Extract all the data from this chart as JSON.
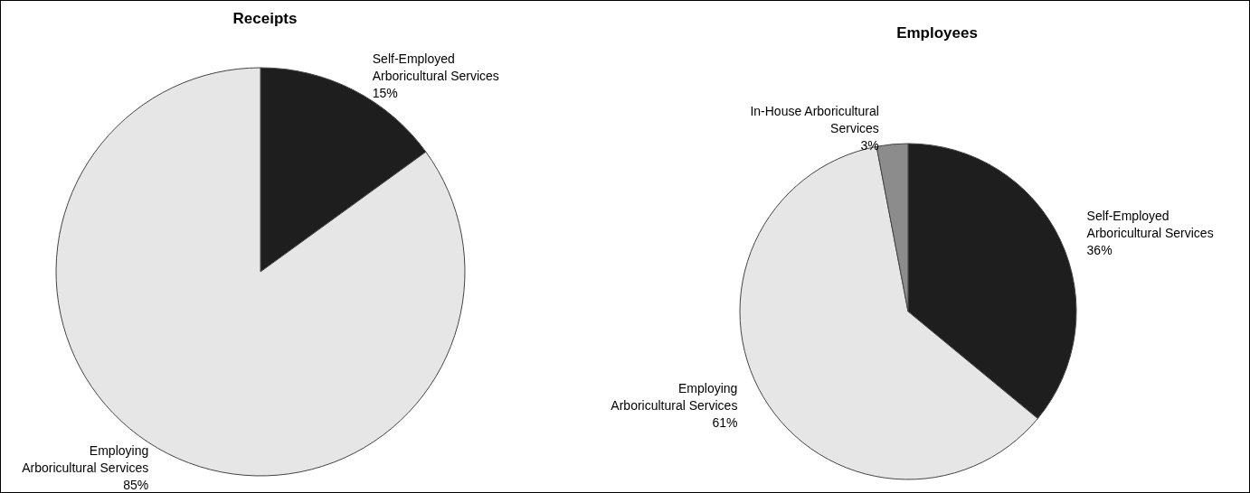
{
  "chart_data": [
    {
      "type": "pie",
      "title": "Receipts",
      "categories": [
        "Self-Employed\nArboricultural Services",
        "Employing\nArboricultural Services"
      ],
      "values": [
        15,
        85
      ],
      "value_labels": [
        "15%",
        "85%"
      ],
      "colors": [
        "#1e1e1e",
        "#e6e6e6"
      ]
    },
    {
      "type": "pie",
      "title": "Employees",
      "categories": [
        "Self-Employed\nArboricultural Services",
        "Employing\nArboricultural Services",
        "In-House Arboricultural\nServices"
      ],
      "values": [
        36,
        61,
        3
      ],
      "value_labels": [
        "36%",
        "61%",
        "3%"
      ],
      "colors": [
        "#1e1e1e",
        "#e6e6e6",
        "#8c8c8c"
      ]
    }
  ]
}
